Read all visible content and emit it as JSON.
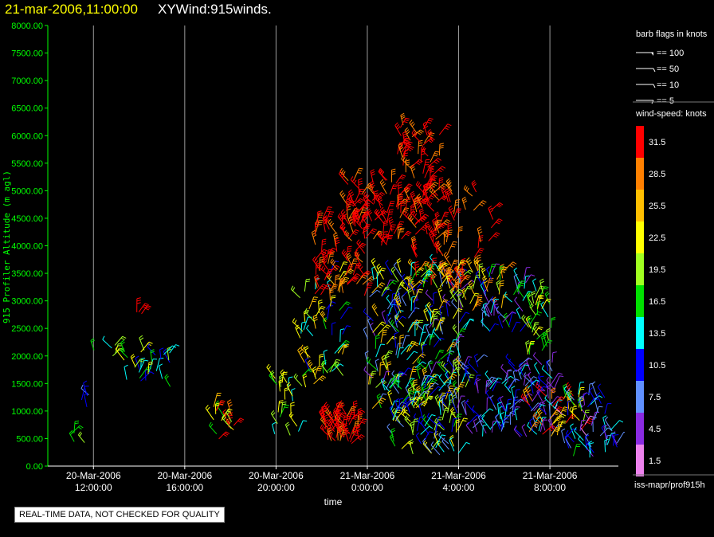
{
  "header": {
    "date_time": "21-mar-2006,11:00:00",
    "product": "XYWind:915winds."
  },
  "chart_data": {
    "type": "scatter",
    "marks": "wind barbs",
    "title": "",
    "ylabel": "915 Profiler Altitude (m agl)",
    "xlabel": "time",
    "ylim": [
      0,
      8000
    ],
    "y_ticks": [
      "0.00",
      "500.00",
      "1000.00",
      "1500.00",
      "2000.00",
      "2500.00",
      "3000.00",
      "3500.00",
      "4000.00",
      "4500.00",
      "5000.00",
      "5500.00",
      "6000.00",
      "6500.00",
      "7000.00",
      "7500.00",
      "8000.00"
    ],
    "x_hours": [
      -2,
      23
    ],
    "x_ticks": [
      {
        "h": 0,
        "date": "20-Mar-2006",
        "time": "12:00:00"
      },
      {
        "h": 4,
        "date": "20-Mar-2006",
        "time": "16:00:00"
      },
      {
        "h": 8,
        "date": "20-Mar-2006",
        "time": "20:00:00"
      },
      {
        "h": 12,
        "date": "21-Mar-2006",
        "time": "0:00:00"
      },
      {
        "h": 16,
        "date": "21-Mar-2006",
        "time": "4:00:00"
      },
      {
        "h": 20,
        "date": "21-Mar-2006",
        "time": "8:00:00"
      }
    ],
    "grid": "vertical",
    "colors": {
      "axis": "#00ff00",
      "grid": "#9a9a9a",
      "text": "#ffffff"
    },
    "wind_clusters": [
      {
        "h_from": -1.0,
        "h_to": -0.2,
        "alt_from": 400,
        "alt_to": 600,
        "spd_from": 14,
        "spd_to": 21,
        "n": 4
      },
      {
        "h_from": -0.6,
        "h_to": -0.2,
        "alt_from": 950,
        "alt_to": 1300,
        "spd_from": 6,
        "spd_to": 12,
        "n": 4
      },
      {
        "h_from": 0.0,
        "h_to": 1.0,
        "alt_from": 2000,
        "alt_to": 2200,
        "spd_from": 12,
        "spd_to": 21,
        "n": 5
      },
      {
        "h_from": 1.2,
        "h_to": 3.6,
        "alt_from": 1400,
        "alt_to": 2150,
        "spd_from": 9,
        "spd_to": 23,
        "n": 26
      },
      {
        "h_from": 1.9,
        "h_to": 2.7,
        "alt_from": 2700,
        "alt_to": 2850,
        "spd_from": 31,
        "spd_to": 32,
        "n": 3
      },
      {
        "h_from": 5.1,
        "h_to": 6.2,
        "alt_from": 400,
        "alt_to": 1100,
        "spd_from": 16,
        "spd_to": 33,
        "n": 16
      },
      {
        "h_from": 7.9,
        "h_to": 9.0,
        "alt_from": 500,
        "alt_to": 1600,
        "spd_from": 12,
        "spd_to": 24,
        "n": 20
      },
      {
        "h_from": 9.0,
        "h_to": 11.0,
        "alt_from": 1400,
        "alt_to": 3600,
        "spd_from": 10,
        "spd_to": 27,
        "n": 55
      },
      {
        "h_from": 9.7,
        "h_to": 12.0,
        "alt_from": 3000,
        "alt_to": 4500,
        "spd_from": 27,
        "spd_to": 34,
        "n": 60
      },
      {
        "h_from": 10.1,
        "h_to": 11.7,
        "alt_from": 400,
        "alt_to": 950,
        "spd_from": 29,
        "spd_to": 34,
        "n": 50
      },
      {
        "h_from": 11.0,
        "h_to": 13.6,
        "alt_from": 4000,
        "alt_to": 5200,
        "spd_from": 29,
        "spd_to": 34,
        "n": 70
      },
      {
        "h_from": 12.0,
        "h_to": 16.3,
        "alt_from": 1000,
        "alt_to": 3600,
        "spd_from": 4,
        "spd_to": 27,
        "n": 220
      },
      {
        "h_from": 13.3,
        "h_to": 15.3,
        "alt_from": 4200,
        "alt_to": 6200,
        "spd_from": 29,
        "spd_to": 34,
        "n": 70
      },
      {
        "h_from": 13.0,
        "h_to": 16.0,
        "alt_from": 200,
        "alt_to": 1500,
        "spd_from": 6,
        "spd_to": 24,
        "n": 90
      },
      {
        "h_from": 14.0,
        "h_to": 17.0,
        "alt_from": 3200,
        "alt_to": 5000,
        "spd_from": 27,
        "spd_to": 33,
        "n": 60
      },
      {
        "h_from": 15.0,
        "h_to": 18.0,
        "alt_from": 2800,
        "alt_to": 3600,
        "spd_from": 19,
        "spd_to": 30,
        "n": 40
      },
      {
        "h_from": 16.2,
        "h_to": 20.3,
        "alt_from": 500,
        "alt_to": 1900,
        "spd_from": 3,
        "spd_to": 14,
        "n": 120
      },
      {
        "h_from": 17.0,
        "h_to": 19.0,
        "alt_from": 2400,
        "alt_to": 3500,
        "spd_from": 4,
        "spd_to": 18,
        "n": 40
      },
      {
        "h_from": 17.3,
        "h_to": 17.6,
        "alt_from": 3900,
        "alt_to": 4700,
        "spd_from": 30,
        "spd_to": 34,
        "n": 4
      },
      {
        "h_from": 19.0,
        "h_to": 20.1,
        "alt_from": 2000,
        "alt_to": 3300,
        "spd_from": 13,
        "spd_to": 24,
        "n": 30
      },
      {
        "h_from": 19.0,
        "h_to": 21.5,
        "alt_from": 500,
        "alt_to": 1300,
        "spd_from": 20,
        "spd_to": 33,
        "n": 30
      },
      {
        "h_from": 20.5,
        "h_to": 23.0,
        "alt_from": 150,
        "alt_to": 1300,
        "spd_from": 2,
        "spd_to": 16,
        "n": 55
      }
    ]
  },
  "legend": {
    "barb_title": "barb flags in knots",
    "barbs": [
      "== 100",
      "== 50",
      "== 10",
      "== 5"
    ],
    "speed_title": "wind-speed: knots",
    "scale": [
      {
        "label": "31.5",
        "color": "#ff0000"
      },
      {
        "label": "28.5",
        "color": "#ff8000"
      },
      {
        "label": "25.5",
        "color": "#ffbf00"
      },
      {
        "label": "22.5",
        "color": "#ffff00"
      },
      {
        "label": "19.5",
        "color": "#a0ff20"
      },
      {
        "label": "16.5",
        "color": "#00e000"
      },
      {
        "label": "13.5",
        "color": "#00ffff"
      },
      {
        "label": "10.5",
        "color": "#0000ff"
      },
      {
        "label": "7.5",
        "color": "#6090ff"
      },
      {
        "label": "4.5",
        "color": "#8a2be2"
      },
      {
        "label": "1.5",
        "color": "#ee82ee"
      }
    ]
  },
  "footer": {
    "quality_note": "REAL-TIME DATA, NOT CHECKED FOR QUALITY",
    "source": "iss-mapr/prof915h"
  }
}
